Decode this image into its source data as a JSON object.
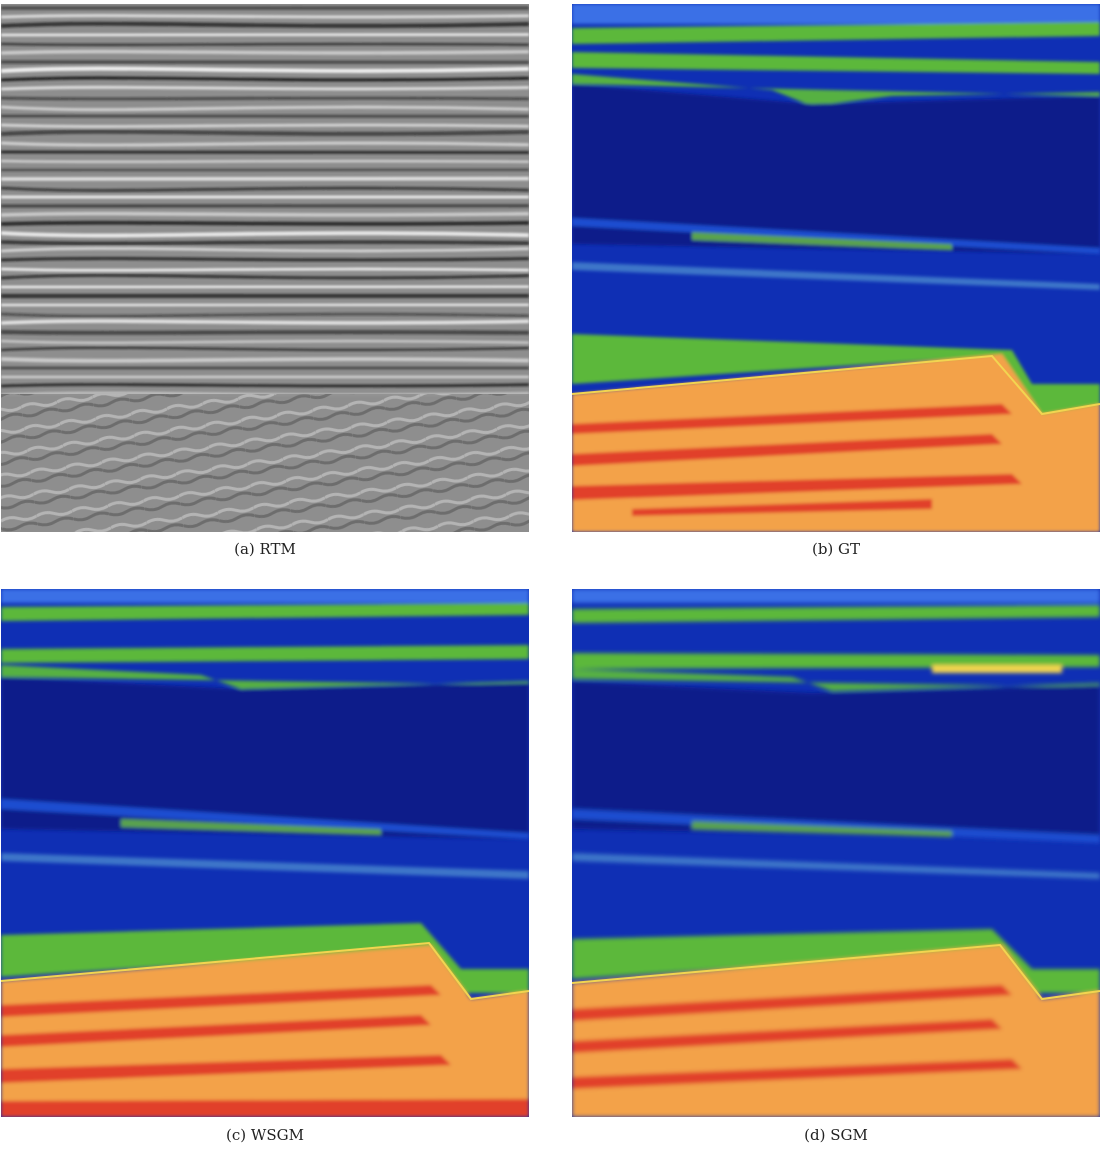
{
  "figure": {
    "panels": [
      {
        "id": "a",
        "label": "(a) RTM",
        "kind": "seismic",
        "image": "RTM seismic migration image"
      },
      {
        "id": "b",
        "label": "(b) GT",
        "kind": "velocity",
        "image": "Ground-truth velocity model"
      },
      {
        "id": "c",
        "label": "(c) WSGM",
        "kind": "velocity",
        "image": "WSGM predicted velocity model"
      },
      {
        "id": "d",
        "label": "(d) SGM",
        "kind": "velocity",
        "image": "SGM predicted velocity model"
      }
    ]
  },
  "colors": {
    "deep_blue": "#0b1d8a",
    "blue": "#1238c8",
    "light_blue": "#3b6ee8",
    "green": "#5cb83a",
    "yellow": "#f2d550",
    "orange": "#f3a24a",
    "red": "#e1402a",
    "seismic_gray": "#8f8f8f"
  }
}
